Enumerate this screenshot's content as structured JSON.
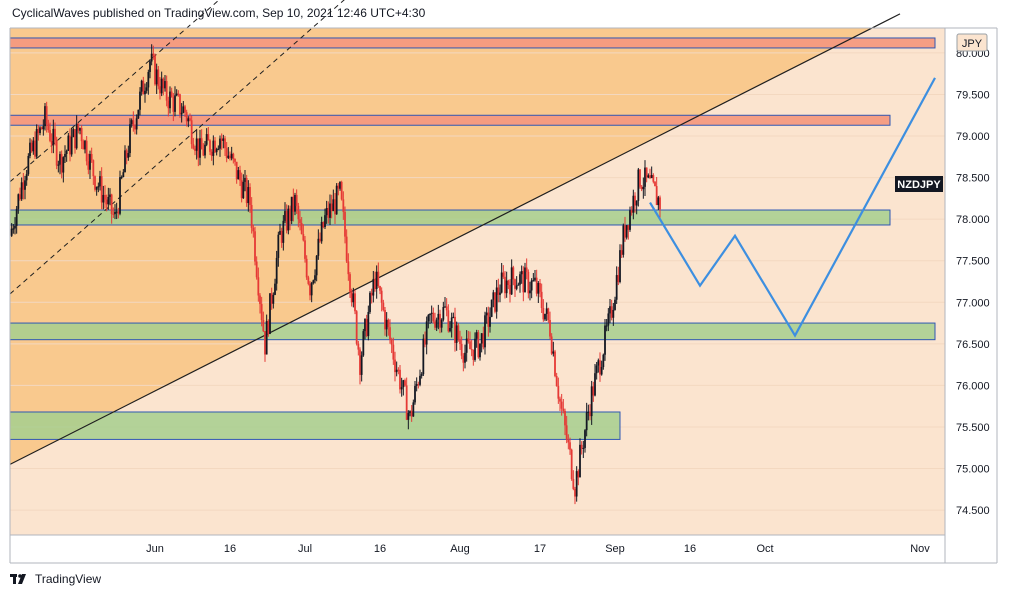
{
  "header": {
    "publish_text": "CyclicalWaves published on TradingView.com, Sep 10, 2021 12:46 UTC+4:30"
  },
  "footer": {
    "brand": "TradingView",
    "logo_icon": "tradingview-logo-icon"
  },
  "colors": {
    "background": "#fbe4cf",
    "channel_fill": "#f9c98e",
    "resistance_fill": "#f49a7f",
    "support_fill": "#a6cf8e",
    "zone_border": "#2f57b3",
    "projection": "#3d8fe0",
    "trendline": "#1f1f1f",
    "candle_up": "#131722",
    "candle_down": "#e53935"
  },
  "chart_data": {
    "type": "candlestick",
    "symbol": "NZDJPY",
    "currency": "JPY",
    "last_price": 78.2,
    "ylim": [
      74.2,
      80.3
    ],
    "y_ticks": [
      "74.500",
      "75.000",
      "75.500",
      "76.000",
      "76.500",
      "77.000",
      "77.500",
      "78.000",
      "78.500",
      "79.000",
      "79.500",
      "80.000"
    ],
    "x_ticks": [
      {
        "label": "Jun",
        "date": "2021-06-01"
      },
      {
        "label": "16",
        "date": "2021-06-16"
      },
      {
        "label": "Jul",
        "date": "2021-07-01"
      },
      {
        "label": "16",
        "date": "2021-07-16"
      },
      {
        "label": "Aug",
        "date": "2021-08-01"
      },
      {
        "label": "17",
        "date": "2021-08-17"
      },
      {
        "label": "Sep",
        "date": "2021-09-01"
      },
      {
        "label": "16",
        "date": "2021-09-16"
      },
      {
        "label": "Oct",
        "date": "2021-10-01"
      },
      {
        "label": "Nov",
        "date": "2021-11-01"
      }
    ],
    "x_range": [
      "2021-05-03",
      "2021-11-06"
    ],
    "price_path": [
      [
        "2021-05-03",
        77.8
      ],
      [
        "2021-05-06",
        78.6
      ],
      [
        "2021-05-10",
        79.2
      ],
      [
        "2021-05-13",
        78.7
      ],
      [
        "2021-05-17",
        79.1
      ],
      [
        "2021-05-20",
        78.5
      ],
      [
        "2021-05-24",
        78.0
      ],
      [
        "2021-05-27",
        79.0
      ],
      [
        "2021-05-31",
        79.9
      ],
      [
        "2021-06-03",
        79.5
      ],
      [
        "2021-06-07",
        79.3
      ],
      [
        "2021-06-10",
        78.8
      ],
      [
        "2021-06-14",
        79.0
      ],
      [
        "2021-06-17",
        78.6
      ],
      [
        "2021-06-20",
        78.2
      ],
      [
        "2021-06-23",
        76.5
      ],
      [
        "2021-06-26",
        77.8
      ],
      [
        "2021-06-29",
        78.2
      ],
      [
        "2021-07-02",
        77.2
      ],
      [
        "2021-07-05",
        78.0
      ],
      [
        "2021-07-08",
        78.3
      ],
      [
        "2021-07-12",
        76.3
      ],
      [
        "2021-07-15",
        77.3
      ],
      [
        "2021-07-19",
        76.3
      ],
      [
        "2021-07-22",
        75.6
      ],
      [
        "2021-07-26",
        76.8
      ],
      [
        "2021-07-29",
        76.9
      ],
      [
        "2021-08-02",
        76.4
      ],
      [
        "2021-08-05",
        76.5
      ],
      [
        "2021-08-09",
        77.2
      ],
      [
        "2021-08-12",
        77.3
      ],
      [
        "2021-08-16",
        77.2
      ],
      [
        "2021-08-19",
        76.7
      ],
      [
        "2021-08-21",
        75.8
      ],
      [
        "2021-08-24",
        74.8
      ],
      [
        "2021-08-27",
        75.8
      ],
      [
        "2021-08-31",
        76.8
      ],
      [
        "2021-09-03",
        77.9
      ],
      [
        "2021-09-06",
        78.5
      ],
      [
        "2021-09-08",
        78.4
      ],
      [
        "2021-09-10",
        78.2
      ]
    ],
    "projection_path": [
      [
        "2021-09-08",
        78.2
      ],
      [
        "2021-09-18",
        77.2
      ],
      [
        "2021-09-25",
        77.8
      ],
      [
        "2021-10-07",
        76.6
      ],
      [
        "2021-11-04",
        79.7
      ]
    ],
    "zones": [
      {
        "kind": "resistance",
        "from": "2021-05-03",
        "to": "2021-11-04",
        "low": 80.06,
        "high": 80.18
      },
      {
        "kind": "resistance",
        "from": "2021-05-03",
        "to": "2021-10-26",
        "low": 79.13,
        "high": 79.25
      },
      {
        "kind": "support",
        "from": "2021-05-03",
        "to": "2021-10-26",
        "low": 77.93,
        "high": 78.11
      },
      {
        "kind": "support",
        "from": "2021-05-03",
        "to": "2021-11-04",
        "low": 76.55,
        "high": 76.75
      },
      {
        "kind": "support",
        "from": "2021-05-03",
        "to": "2021-09-02",
        "low": 75.35,
        "high": 75.68
      }
    ],
    "trendline": {
      "from": [
        "2021-05-03",
        75.05
      ],
      "to": [
        "2021-10-28",
        80.47
      ]
    },
    "channel_lines": [
      {
        "from": [
          "2021-05-03",
          77.1
        ],
        "to": [
          "2021-07-10",
          80.7
        ]
      },
      {
        "from": [
          "2021-05-03",
          78.45
        ],
        "to": [
          "2021-06-15",
          80.7
        ]
      }
    ]
  }
}
